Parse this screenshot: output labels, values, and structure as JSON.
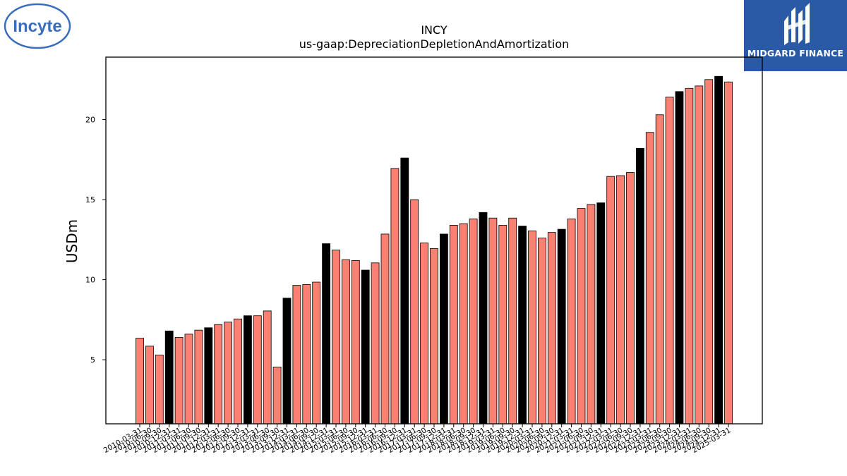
{
  "logos": {
    "left_text": "Incyte",
    "right_text": "MIDGARD FINANCE"
  },
  "colors": {
    "bar_default": "#fa8072",
    "bar_highlight": "#000000",
    "edge": "#000000",
    "brand_blue": "#2a5aa6",
    "incyte_blue": "#3b6dbf"
  },
  "chart_data": {
    "type": "bar",
    "title": "INCY",
    "subtitle": "us-gaap:DepreciationDepletionAndAmortization",
    "xlabel": "",
    "ylabel": "USDm",
    "ylim": [
      1,
      23.9
    ],
    "yticks": [
      5,
      10,
      15,
      20
    ],
    "grid": false,
    "categories": [
      "2010-03-31",
      "2010-06-30",
      "2010-09-30",
      "2010-12-31",
      "2011-03-31",
      "2011-06-30",
      "2011-09-30",
      "2011-12-31",
      "2012-03-31",
      "2012-06-30",
      "2012-09-30",
      "2012-12-31",
      "2013-03-31",
      "2013-06-30",
      "2013-09-30",
      "2013-12-31",
      "2014-03-31",
      "2014-06-30",
      "2014-09-30",
      "2014-12-31",
      "2015-03-31",
      "2015-06-30",
      "2015-09-30",
      "2015-12-31",
      "2016-03-31",
      "2016-06-30",
      "2016-09-30",
      "2016-12-31",
      "2017-03-31",
      "2017-06-30",
      "2017-09-30",
      "2017-12-31",
      "2018-03-31",
      "2018-06-30",
      "2018-09-30",
      "2018-12-31",
      "2019-03-31",
      "2019-06-30",
      "2019-09-30",
      "2019-12-31",
      "2020-03-31",
      "2020-06-30",
      "2020-09-30",
      "2020-12-31",
      "2021-03-31",
      "2021-06-30",
      "2021-09-30",
      "2021-12-31",
      "2022-03-31",
      "2022-06-30",
      "2022-09-30",
      "2022-12-31",
      "2023-03-31",
      "2023-06-30",
      "2023-09-30",
      "2023-12-31",
      "2024-03-31",
      "2024-06-30",
      "2024-09-30",
      "2024-12-31",
      "2025-03-31"
    ],
    "values": [
      6.35,
      5.85,
      5.3,
      6.8,
      6.4,
      6.6,
      6.85,
      7.0,
      7.2,
      7.35,
      7.55,
      7.75,
      7.75,
      8.05,
      4.55,
      8.85,
      9.65,
      9.7,
      9.85,
      12.25,
      11.85,
      11.25,
      11.2,
      10.6,
      11.05,
      12.85,
      16.95,
      17.6,
      15.0,
      12.3,
      11.95,
      12.85,
      13.4,
      13.5,
      13.8,
      14.2,
      13.85,
      13.4,
      13.85,
      13.35,
      13.05,
      12.6,
      12.95,
      13.15,
      13.8,
      14.45,
      14.7,
      14.8,
      16.45,
      16.5,
      16.7,
      18.2,
      19.2,
      20.3,
      21.4,
      21.75,
      21.95,
      22.1,
      22.5,
      22.7,
      22.35
    ],
    "highlight_labels": [
      "2010-12-31",
      "2011-12-31",
      "2012-12-31",
      "2013-12-31",
      "2014-12-31",
      "2015-12-31",
      "2016-12-31",
      "2017-12-31",
      "2018-12-31",
      "2019-12-31",
      "2020-12-31",
      "2021-12-31",
      "2022-12-31",
      "2023-12-31",
      "2024-12-31"
    ]
  }
}
